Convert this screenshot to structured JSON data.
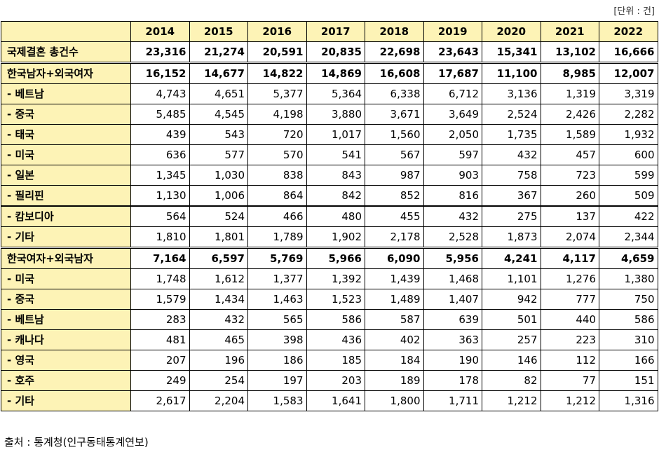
{
  "unit_label": "[단위 : 건]",
  "source": "출처 : 통계청(인구동태통계연보)",
  "years": [
    "2014",
    "2015",
    "2016",
    "2017",
    "2018",
    "2019",
    "2020",
    "2021",
    "2022"
  ],
  "rows": [
    {
      "label": "국제결혼 총건수",
      "values": [
        "23,316",
        "21,274",
        "20,591",
        "20,835",
        "22,698",
        "23,643",
        "15,341",
        "13,102",
        "16,666"
      ],
      "bold": true
    },
    {
      "label": "한국남자+외국여자",
      "values": [
        "16,152",
        "14,677",
        "14,822",
        "14,869",
        "16,608",
        "17,687",
        "11,100",
        "8,985",
        "12,007"
      ],
      "bold": true
    },
    {
      "label": " - 베트남",
      "values": [
        "4,743",
        "4,651",
        "5,377",
        "5,364",
        "6,338",
        "6,712",
        "3,136",
        "1,319",
        "3,319"
      ],
      "bold": false
    },
    {
      "label": " - 중국",
      "values": [
        "5,485",
        "4,545",
        "4,198",
        "3,880",
        "3,671",
        "3,649",
        "2,524",
        "2,426",
        "2,282"
      ],
      "bold": false
    },
    {
      "label": " - 태국",
      "values": [
        "439",
        "543",
        "720",
        "1,017",
        "1,560",
        "2,050",
        "1,735",
        "1,589",
        "1,932"
      ],
      "bold": false
    },
    {
      "label": " - 미국",
      "values": [
        "636",
        "577",
        "570",
        "541",
        "567",
        "597",
        "432",
        "457",
        "600"
      ],
      "bold": false
    },
    {
      "label": " - 일본",
      "values": [
        "1,345",
        "1,030",
        "838",
        "843",
        "987",
        "903",
        "758",
        "723",
        "599"
      ],
      "bold": false
    },
    {
      "label": " - 필리핀",
      "values": [
        "1,130",
        "1,006",
        "864",
        "842",
        "852",
        "816",
        "367",
        "260",
        "509"
      ],
      "bold": false
    },
    {
      "label": " - 캄보디아",
      "values": [
        "564",
        "524",
        "466",
        "480",
        "455",
        "432",
        "275",
        "137",
        "422"
      ],
      "bold": false
    },
    {
      "label": " - 기타",
      "values": [
        "1,810",
        "1,801",
        "1,789",
        "1,902",
        "2,178",
        "2,528",
        "1,873",
        "2,074",
        "2,344"
      ],
      "bold": false
    },
    {
      "label": "한국여자+외국남자",
      "values": [
        "7,164",
        "6,597",
        "5,769",
        "5,966",
        "6,090",
        "5,956",
        "4,241",
        "4,117",
        "4,659"
      ],
      "bold": true
    },
    {
      "label": " - 미국",
      "values": [
        "1,748",
        "1,612",
        "1,377",
        "1,392",
        "1,439",
        "1,468",
        "1,101",
        "1,276",
        "1,380"
      ],
      "bold": false
    },
    {
      "label": " - 중국",
      "values": [
        "1,579",
        "1,434",
        "1,463",
        "1,523",
        "1,489",
        "1,407",
        "942",
        "777",
        "750"
      ],
      "bold": false
    },
    {
      "label": " - 베트남",
      "values": [
        "283",
        "432",
        "565",
        "586",
        "587",
        "639",
        "501",
        "440",
        "586"
      ],
      "bold": false
    },
    {
      "label": " - 캐나다",
      "values": [
        "481",
        "465",
        "398",
        "436",
        "402",
        "363",
        "257",
        "223",
        "310"
      ],
      "bold": false
    },
    {
      "label": " - 영국",
      "values": [
        "207",
        "196",
        "186",
        "185",
        "184",
        "190",
        "146",
        "112",
        "166"
      ],
      "bold": false
    },
    {
      "label": " - 호주",
      "values": [
        "249",
        "254",
        "197",
        "203",
        "189",
        "178",
        "82",
        "77",
        "151"
      ],
      "bold": false
    },
    {
      "label": " - 기타",
      "values": [
        "2,617",
        "2,204",
        "1,583",
        "1,641",
        "1,800",
        "1,711",
        "1,212",
        "1,212",
        "1,316"
      ],
      "bold": false
    }
  ]
}
